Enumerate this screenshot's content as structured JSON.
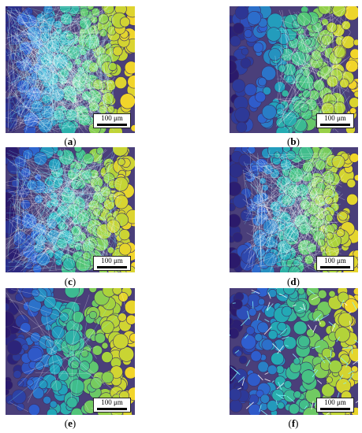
{
  "figure": {
    "scale_label": "100 μm",
    "panels": [
      {
        "label": "a",
        "caption_open": "(",
        "caption_close": ")"
      },
      {
        "label": "b",
        "caption_open": "(",
        "caption_close": ")"
      },
      {
        "label": "c",
        "caption_open": "(",
        "caption_close": ")"
      },
      {
        "label": "d",
        "caption_open": "(",
        "caption_close": ")"
      },
      {
        "label": "e",
        "caption_open": "(",
        "caption_close": ")"
      },
      {
        "label": "f",
        "caption_open": "(",
        "caption_close": ")"
      }
    ],
    "colors": {
      "background": "#4a3f7a",
      "gradient": [
        "#2b1a6b",
        "#2f5fd0",
        "#21a8b8",
        "#4cc47c",
        "#a9d33b",
        "#f2d52a"
      ],
      "edges": "#ffffff",
      "edges_cyan": "#7ff7ff"
    }
  }
}
